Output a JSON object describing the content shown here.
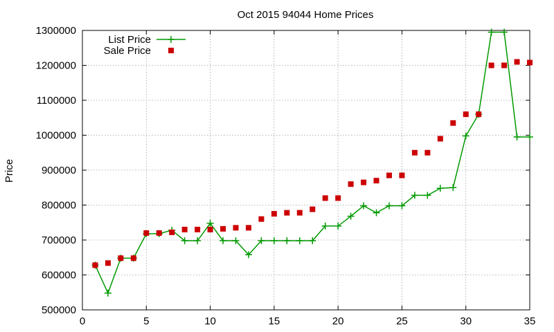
{
  "chart_data": {
    "type": "line",
    "title": "Oct 2015 94044 Home Prices",
    "xlabel": "",
    "ylabel": "Price",
    "xlim": [
      0,
      35
    ],
    "ylim": [
      500000,
      1300000
    ],
    "x_ticks": [
      0,
      5,
      10,
      15,
      20,
      25,
      30,
      35
    ],
    "y_ticks": [
      500000,
      600000,
      700000,
      800000,
      900000,
      1000000,
      1100000,
      1200000,
      1300000
    ],
    "grid": true,
    "legend_position": "top-left",
    "series": [
      {
        "name": "List Price",
        "style": "line-plus",
        "color": "#009900",
        "x": [
          1,
          2,
          3,
          4,
          5,
          6,
          7,
          8,
          9,
          10,
          11,
          12,
          13,
          14,
          15,
          16,
          17,
          18,
          19,
          20,
          21,
          22,
          23,
          24,
          25,
          26,
          27,
          28,
          29,
          30,
          31,
          32,
          33,
          34,
          35
        ],
        "values": [
          628000,
          548000,
          648000,
          648000,
          718000,
          718000,
          728000,
          698000,
          698000,
          748000,
          698000,
          698000,
          658000,
          698000,
          698000,
          698000,
          698000,
          698000,
          740000,
          740000,
          768000,
          798000,
          778000,
          798000,
          798000,
          828000,
          828000,
          848000,
          850000,
          998000,
          1060000,
          1295000,
          1295000,
          995000,
          995000
        ]
      },
      {
        "name": "Sale Price",
        "style": "points-square",
        "color": "#cc0000",
        "x": [
          1,
          2,
          3,
          4,
          5,
          6,
          7,
          8,
          9,
          10,
          11,
          12,
          13,
          14,
          15,
          16,
          17,
          18,
          19,
          20,
          21,
          22,
          23,
          24,
          25,
          26,
          27,
          28,
          29,
          30,
          31,
          32,
          33,
          34,
          35
        ],
        "values": [
          628000,
          634000,
          648000,
          648000,
          720000,
          720000,
          722000,
          730000,
          730000,
          730000,
          732000,
          735000,
          735000,
          760000,
          775000,
          778000,
          778000,
          788000,
          820000,
          820000,
          860000,
          865000,
          870000,
          885000,
          885000,
          950000,
          950000,
          990000,
          1035000,
          1060000,
          1060000,
          1200000,
          1200000,
          1210000,
          1208000
        ]
      }
    ]
  }
}
